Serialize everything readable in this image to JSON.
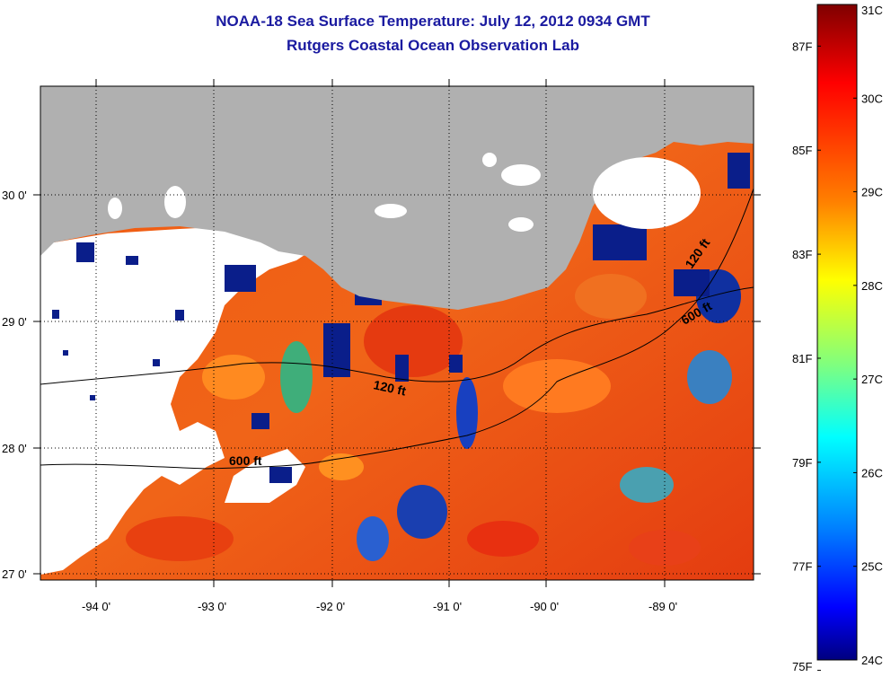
{
  "title_line1": "NOAA-18 Sea Surface Temperature:  July 12, 2012 0934 GMT",
  "title_line2": "Rutgers Coastal Ocean Observation Lab",
  "lon_ticks": [
    "-94 0'",
    "-93 0'",
    "-92 0'",
    "-91 0'",
    "-90 0'",
    "-89 0'"
  ],
  "lat_ticks": [
    "30 0'",
    "29 0'",
    "28 0'",
    "27 0'"
  ],
  "contour_labels": [
    "120 ft",
    "600 ft",
    "120 ft",
    "600 ft"
  ],
  "colorbar": {
    "celsius": [
      "31C",
      "30C",
      "29C",
      "28C",
      "27C",
      "26C",
      "25C",
      "24C"
    ],
    "fahrenheit": [
      "87F",
      "85F",
      "83F",
      "81F",
      "79F",
      "77F",
      "75F"
    ],
    "min_c": 24,
    "max_c": 31
  },
  "colors": {
    "land": "#b0b0b0",
    "cloud": "#ffffff",
    "title": "#1a1aa0"
  }
}
